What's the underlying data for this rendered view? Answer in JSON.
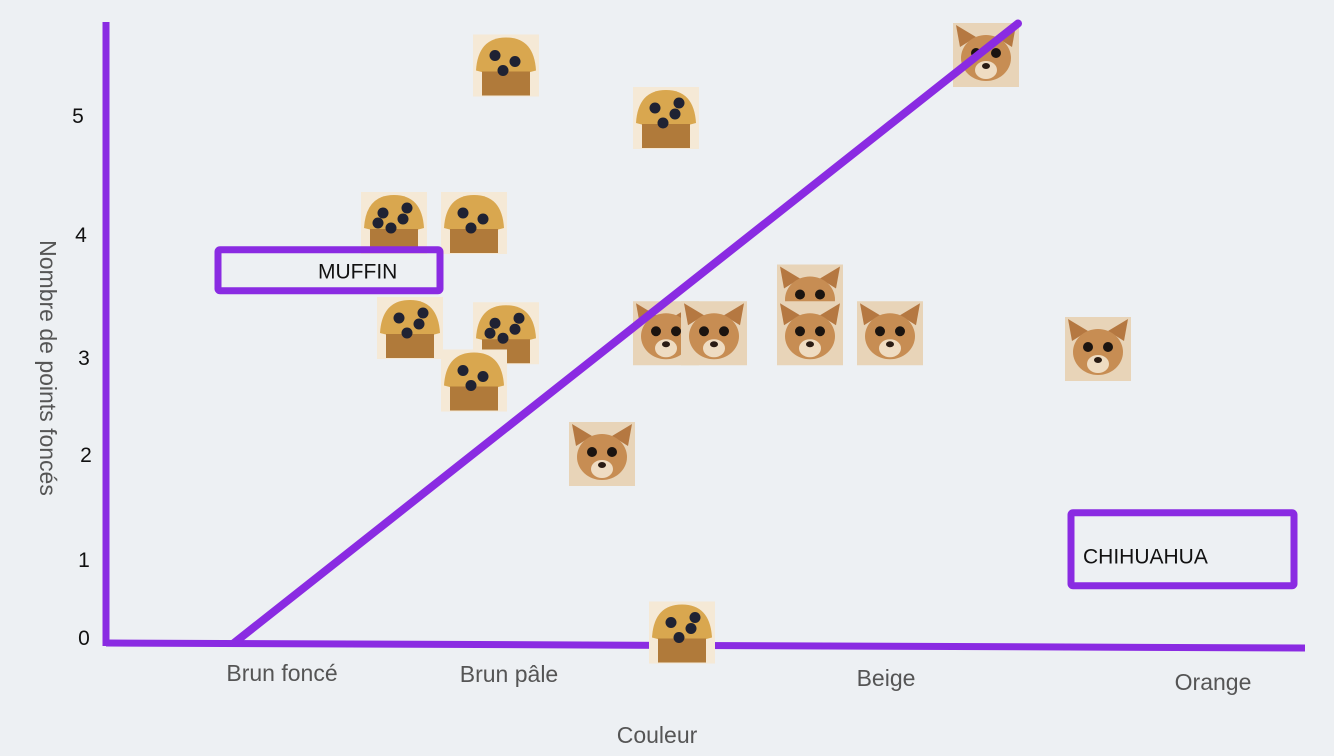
{
  "chart_data": {
    "type": "scatter",
    "xlabel": "Couleur",
    "ylabel": "Nombre de points foncés",
    "categories": [
      "Brun foncé",
      "Brun pâle",
      "Beige",
      "Orange"
    ],
    "y_ticks": [
      "0",
      "1",
      "2",
      "3",
      "4",
      "5"
    ],
    "ylim": [
      0,
      5.7
    ],
    "series": [
      {
        "name": "MUFFIN",
        "marker": "muffin-photo",
        "points": [
          {
            "x": 1.25,
            "y": 5.5
          },
          {
            "x": 1.75,
            "y": 5.0
          },
          {
            "x": 0.9,
            "y": 4.0
          },
          {
            "x": 1.15,
            "y": 4.0
          },
          {
            "x": 0.95,
            "y": 3.0
          },
          {
            "x": 1.25,
            "y": 2.95
          },
          {
            "x": 1.15,
            "y": 2.5
          },
          {
            "x": 1.8,
            "y": 0.1
          }
        ]
      },
      {
        "name": "CHIHUAHUA",
        "marker": "chihuahua-photo",
        "points": [
          {
            "x": 2.75,
            "y": 5.6
          },
          {
            "x": 2.2,
            "y": 3.3
          },
          {
            "x": 1.75,
            "y": 2.95
          },
          {
            "x": 1.9,
            "y": 2.95
          },
          {
            "x": 2.2,
            "y": 2.95
          },
          {
            "x": 2.45,
            "y": 2.95
          },
          {
            "x": 3.1,
            "y": 2.8
          },
          {
            "x": 1.55,
            "y": 1.8
          }
        ]
      }
    ],
    "decision_line": {
      "color": "#8a2be2",
      "points": [
        {
          "x": 0.4,
          "y": 0
        },
        {
          "x": 2.85,
          "y": 5.9
        }
      ]
    },
    "callouts": [
      {
        "text": "MUFFIN",
        "x": 0.35,
        "y": 3.55
      },
      {
        "text": "CHIHUAHUA",
        "x": 3.15,
        "y": 0.95
      }
    ],
    "colors": {
      "axis": "#8a2be2",
      "background": "#edf0f3",
      "muffin_crust": "#d9a74f",
      "muffin_berry": "#1f2233",
      "dog_fur": "#c78d53"
    },
    "grid": false
  }
}
